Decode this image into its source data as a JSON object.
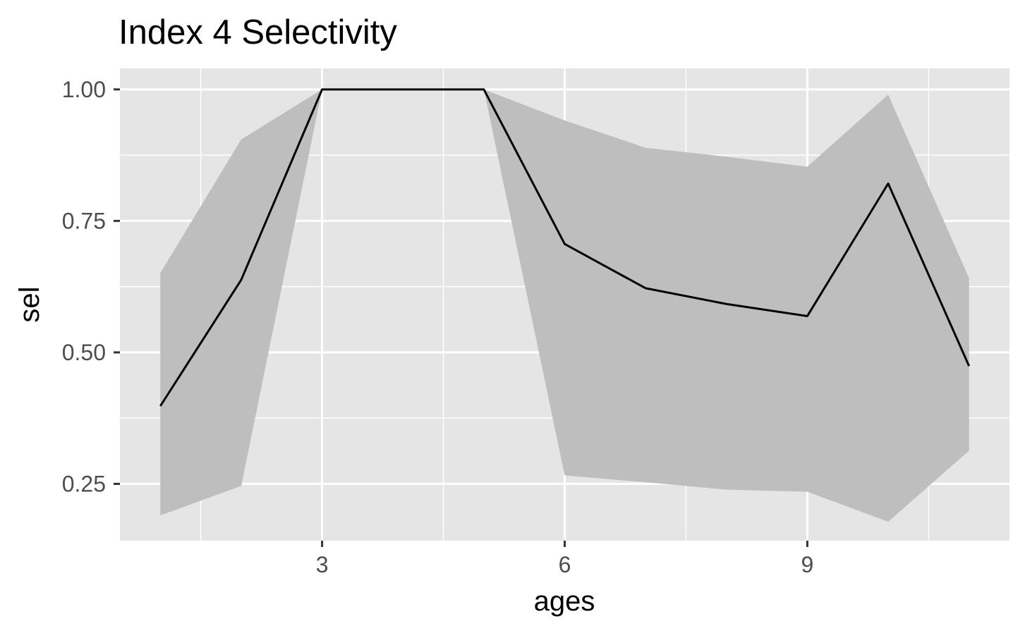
{
  "chart_data": {
    "type": "line",
    "title": "Index 4 Selectivity",
    "xlabel": "ages",
    "ylabel": "sel",
    "x": [
      1,
      2,
      3,
      4,
      5,
      6,
      7,
      8,
      9,
      10,
      11
    ],
    "series": [
      {
        "values": [
          0.398,
          0.638,
          1.0,
          1.0,
          1.0,
          0.706,
          0.622,
          0.592,
          0.569,
          0.821,
          0.474
        ],
        "lower": [
          0.19,
          0.246,
          1.0,
          1.0,
          1.0,
          0.266,
          0.253,
          0.239,
          0.235,
          0.178,
          0.313
        ],
        "upper": [
          0.651,
          0.905,
          1.0,
          1.0,
          1.0,
          0.941,
          0.889,
          0.872,
          0.853,
          0.99,
          0.641
        ]
      }
    ],
    "xlim": [
      0.5,
      11.5
    ],
    "ylim": [
      0.142,
      1.04
    ],
    "xticks": [
      3,
      6,
      9
    ],
    "xtick_labels": [
      "3",
      "6",
      "9"
    ],
    "yticks": [
      0.25,
      0.5,
      0.75,
      1.0
    ],
    "ytick_labels": [
      "0.25",
      "0.50",
      "0.75",
      "1.00"
    ],
    "grid": true,
    "colors": {
      "panel": "#e5e5e5",
      "grid": "#ffffff",
      "ribbon": "#bebebe",
      "line": "#000000"
    }
  }
}
